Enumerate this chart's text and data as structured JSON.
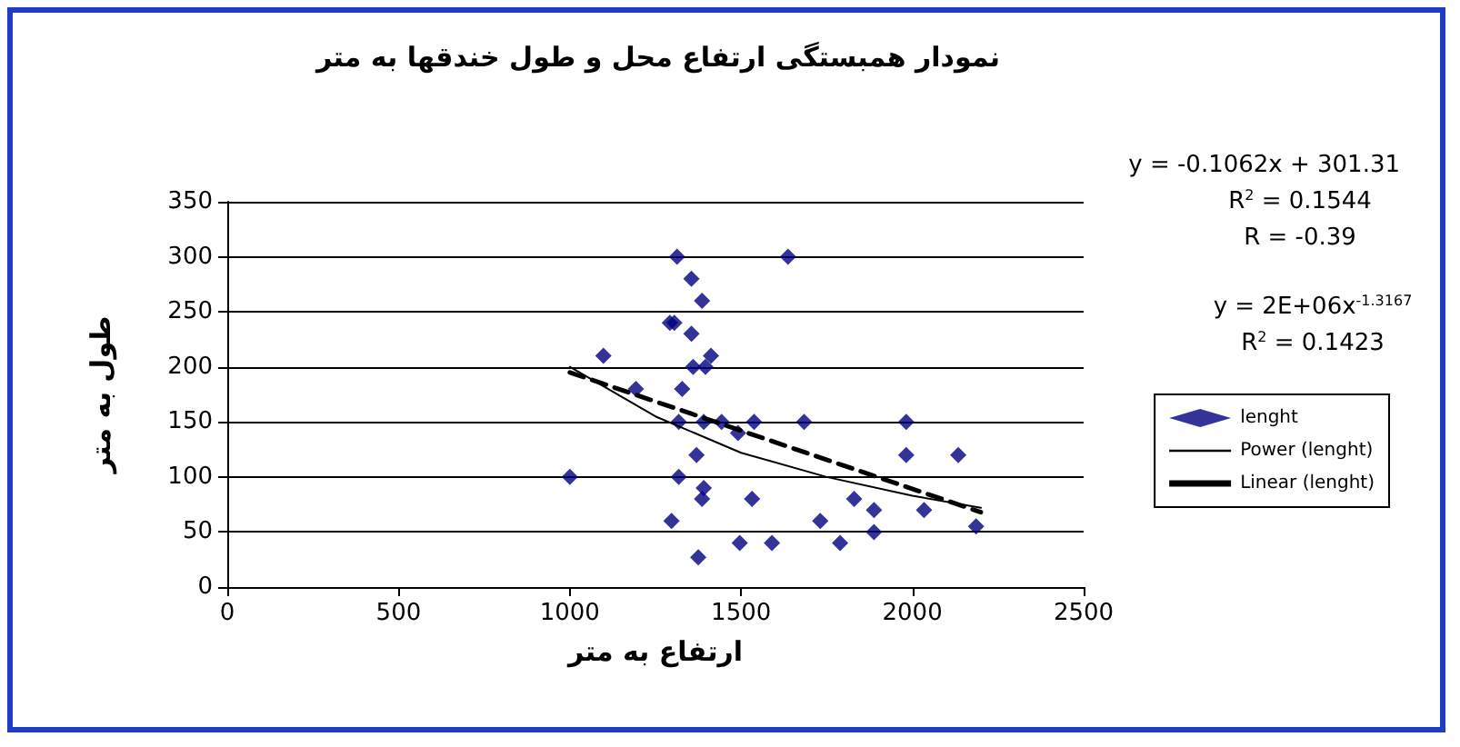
{
  "chart_data": {
    "type": "scatter",
    "title": "نمودار همبستگی ارتفاع محل و طول خندقها به متر",
    "xlabel": "ارتفاع به متر",
    "ylabel": "طول به متر",
    "xlim": [
      0,
      2500
    ],
    "xticks": [
      0,
      500,
      1000,
      1500,
      2000,
      2500
    ],
    "ylim": [
      0,
      350
    ],
    "yticks": [
      0,
      50,
      100,
      150,
      200,
      250,
      300,
      350
    ],
    "grid": "y",
    "legend": "right",
    "marker": "diamond",
    "annotations": [
      "y = -0.1062x + 301.31",
      "R$^{2}$ = 0.1544",
      "R = -0.39",
      "y = 2E+06x$^{-1.3167}$",
      "R$^{2}$ = 0.1423"
    ],
    "series": [
      {
        "name": "lenght",
        "color": "#000080",
        "x": [
          1313,
          1355,
          1386,
          1292,
          1305,
          1355,
          1098,
          1412,
          1360,
          1396,
          1193,
          1328,
          1318,
          1391,
          1443,
          1538,
          1684,
          1491,
          1370,
          1000,
          1318,
          1391,
          1386,
          1532,
          1297,
          1496,
          1590,
          1375,
          1637,
          1982,
          1982,
          2134,
          1830,
          1888,
          2034,
          1731,
          1888,
          1789,
          2186
        ],
        "values": [
          300,
          280,
          260,
          240,
          240,
          230,
          210,
          210,
          200,
          200,
          180,
          180,
          150,
          150,
          150,
          150,
          150,
          140,
          120,
          100,
          100,
          90,
          80,
          80,
          60,
          40,
          40,
          27,
          300,
          150,
          120,
          120,
          80,
          70,
          70,
          60,
          50,
          40,
          55
        ]
      },
      {
        "name": "Power (lenght)",
        "type": "line",
        "color": "#000000",
        "line_style": "solid",
        "marker": "none",
        "x": [
          1000,
          1250,
          1500,
          1750,
          2000,
          2200
        ],
        "values": [
          200,
          155,
          122,
          100,
          83,
          72
        ]
      },
      {
        "name": "Linear (lenght)",
        "type": "line",
        "color": "#000000",
        "line_style": "dashed",
        "marker": "none",
        "x": [
          1000,
          2200
        ],
        "values": [
          195,
          68
        ]
      }
    ]
  }
}
